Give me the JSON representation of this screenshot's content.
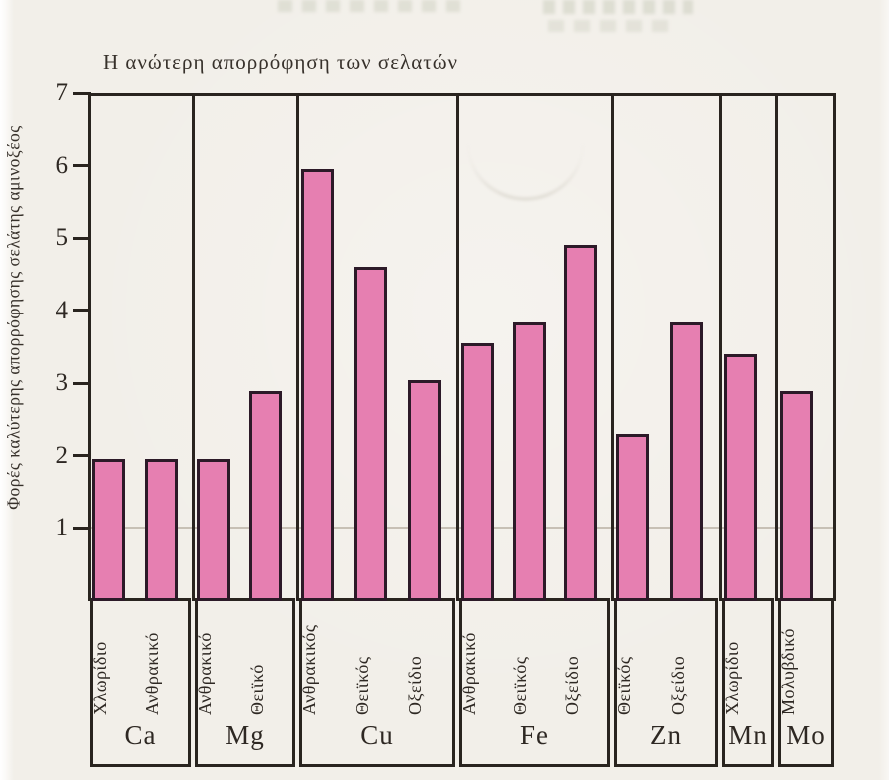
{
  "page": {
    "background_color": "#f2efe9",
    "ink_color": "#29241f"
  },
  "chart_data": {
    "type": "bar",
    "title": "Η ανώτερη απορρόφηση των σελατών",
    "ylabel": "Φορές καλύτερης απορρόφησης σελάτης αμινοξέος",
    "xlabel": "",
    "ylim": [
      0,
      7
    ],
    "yticks": [
      1,
      2,
      3,
      4,
      5,
      6,
      7
    ],
    "gridlines": "single faint horizontal line at y=1",
    "legend": "none",
    "bar_color": "#e67fb1",
    "bar_border_color": "#2c1a28",
    "groups": [
      {
        "element": "Ca",
        "bars": [
          {
            "label": "Χλωρίδιο",
            "value": 1.95
          },
          {
            "label": "Ανθρακικό",
            "value": 1.95
          }
        ]
      },
      {
        "element": "Mg",
        "bars": [
          {
            "label": "Ανθρακικό",
            "value": 1.95
          },
          {
            "label": "Θειϊκό",
            "value": 2.9
          }
        ]
      },
      {
        "element": "Cu",
        "bars": [
          {
            "label": "Ανθρακικός",
            "value": 5.95
          },
          {
            "label": "Θειϊκός",
            "value": 4.6
          },
          {
            "label": "Οξείδιο",
            "value": 3.05
          }
        ]
      },
      {
        "element": "Fe",
        "bars": [
          {
            "label": "Ανθρακικό",
            "value": 3.55
          },
          {
            "label": "Θειϊκός",
            "value": 3.85
          },
          {
            "label": "Οξείδιο",
            "value": 4.9
          }
        ]
      },
      {
        "element": "Zn",
        "bars": [
          {
            "label": "Θειϊκός",
            "value": 2.3
          },
          {
            "label": "Οξείδιο",
            "value": 3.85
          }
        ]
      },
      {
        "element": "Mn",
        "bars": [
          {
            "label": "Χλωρίδιο",
            "value": 3.4
          }
        ]
      },
      {
        "element": "Mo",
        "bars": [
          {
            "label": "Μολυβδικό",
            "value": 2.9
          }
        ]
      }
    ]
  }
}
